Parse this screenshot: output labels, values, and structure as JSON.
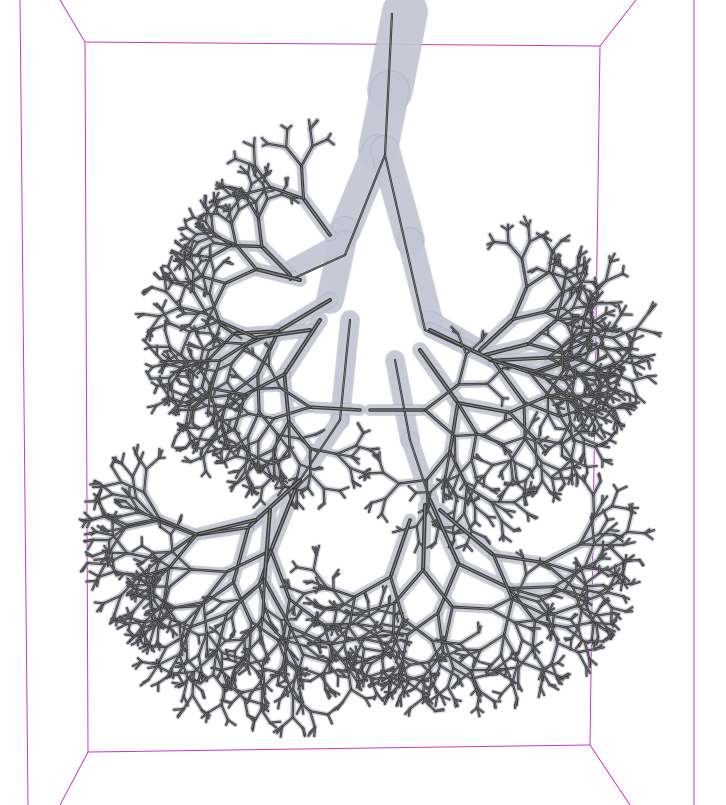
{
  "scene": {
    "subject": "airway-tree",
    "background_color": "#ffffff",
    "bounding_box_color": "#cc33cc",
    "surface_color": "#c5c8d6",
    "surface_edge_color": "#a9adbe",
    "centerline_color": "#3a3a3a",
    "centerline_highlight_color": "#8a8a8a"
  }
}
